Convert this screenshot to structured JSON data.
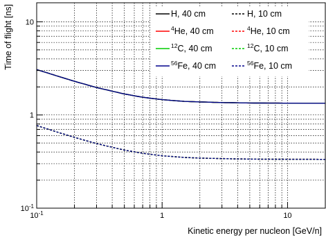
{
  "chart_data": {
    "type": "line",
    "xlabel": "Kinetic energy per nucleon [GeV/n]",
    "ylabel": "Time of flight [ns]",
    "xscale": "log",
    "yscale": "log",
    "xlim": [
      0.1,
      20
    ],
    "ylim": [
      0.1,
      16
    ],
    "grid": true,
    "legend_position": "top-right",
    "x_tick_labels": [
      {
        "value": 0.1,
        "base": "10",
        "exp": "-1"
      },
      {
        "value": 1,
        "base": "1",
        "exp": ""
      },
      {
        "value": 10,
        "base": "10",
        "exp": ""
      }
    ],
    "y_tick_labels": [
      {
        "value": 0.1,
        "base": "10",
        "exp": "-1"
      },
      {
        "value": 1,
        "base": "1",
        "exp": ""
      },
      {
        "value": 10,
        "base": "10",
        "exp": ""
      }
    ],
    "x": [
      0.1,
      0.15,
      0.2,
      0.3,
      0.5,
      0.7,
      1,
      1.5,
      2,
      3,
      5,
      10,
      20
    ],
    "series": [
      {
        "name": "H, 40 cm",
        "name_sup": "",
        "name_main": "H, 40 cm",
        "color": "#000000",
        "dash": false,
        "values": [
          3.07,
          2.59,
          2.3,
          1.97,
          1.68,
          1.55,
          1.46,
          1.4,
          1.38,
          1.36,
          1.345,
          1.338,
          1.336
        ]
      },
      {
        "name": "H, 10 cm",
        "name_sup": "",
        "name_main": "H, 10 cm",
        "color": "#000000",
        "dash": true,
        "values": [
          0.77,
          0.648,
          0.575,
          0.493,
          0.42,
          0.388,
          0.365,
          0.35,
          0.345,
          0.34,
          0.336,
          0.3345,
          0.334
        ]
      },
      {
        "name": "4He, 40 cm",
        "name_sup": "4",
        "name_main": "He, 40 cm",
        "color": "#ff0000",
        "dash": false,
        "values": [
          3.07,
          2.59,
          2.3,
          1.97,
          1.68,
          1.55,
          1.46,
          1.4,
          1.38,
          1.36,
          1.345,
          1.338,
          1.336
        ]
      },
      {
        "name": "4He, 10 cm",
        "name_sup": "4",
        "name_main": "He, 10 cm",
        "color": "#ff0000",
        "dash": true,
        "values": [
          0.77,
          0.648,
          0.575,
          0.493,
          0.42,
          0.388,
          0.365,
          0.35,
          0.345,
          0.34,
          0.336,
          0.3345,
          0.334
        ]
      },
      {
        "name": "12C, 40 cm",
        "name_sup": "12",
        "name_main": "C, 40 cm",
        "color": "#00cc00",
        "dash": false,
        "values": [
          3.07,
          2.59,
          2.3,
          1.97,
          1.68,
          1.55,
          1.46,
          1.4,
          1.38,
          1.36,
          1.345,
          1.338,
          1.336
        ]
      },
      {
        "name": "12C, 10 cm",
        "name_sup": "12",
        "name_main": "C, 10 cm",
        "color": "#00cc00",
        "dash": true,
        "values": [
          0.77,
          0.648,
          0.575,
          0.493,
          0.42,
          0.388,
          0.365,
          0.35,
          0.345,
          0.34,
          0.336,
          0.3345,
          0.334
        ]
      },
      {
        "name": "56Fe, 40 cm",
        "name_sup": "56",
        "name_main": "Fe, 40 cm",
        "color": "#00008b",
        "dash": false,
        "values": [
          3.07,
          2.59,
          2.3,
          1.97,
          1.68,
          1.55,
          1.46,
          1.4,
          1.38,
          1.36,
          1.345,
          1.338,
          1.336
        ]
      },
      {
        "name": "56Fe, 10 cm",
        "name_sup": "56",
        "name_main": "Fe, 10 cm",
        "color": "#00008b",
        "dash": true,
        "values": [
          0.77,
          0.648,
          0.575,
          0.493,
          0.42,
          0.388,
          0.365,
          0.35,
          0.345,
          0.34,
          0.336,
          0.3345,
          0.334
        ]
      }
    ]
  }
}
